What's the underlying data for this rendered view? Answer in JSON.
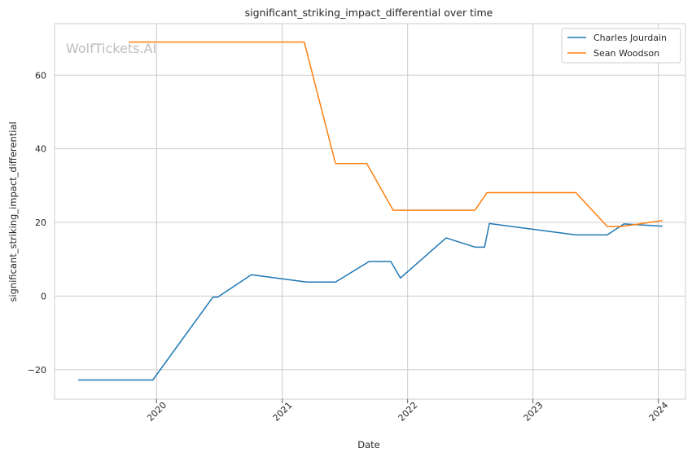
{
  "chart_data": {
    "type": "line",
    "title": "significant_striking_impact_differential over time",
    "xlabel": "Date",
    "ylabel": "significant_striking_impact_differential",
    "watermark": "WolfTickets.AI",
    "x_type": "date",
    "xlim": [
      "2019-03-10",
      "2024-03-20"
    ],
    "ylim": [
      -28,
      74
    ],
    "xticks": [
      {
        "date": "2020-01-01",
        "label": "2020"
      },
      {
        "date": "2021-01-01",
        "label": "2021"
      },
      {
        "date": "2022-01-01",
        "label": "2022"
      },
      {
        "date": "2023-01-01",
        "label": "2023"
      },
      {
        "date": "2024-01-01",
        "label": "2024"
      }
    ],
    "yticks": [
      -20,
      0,
      20,
      40,
      60
    ],
    "grid": true,
    "legend_position": "top-right",
    "series": [
      {
        "name": "Charles Jourdain",
        "color": "#1f77b4",
        "points": [
          {
            "x": "2019-05-18",
            "y": -22.8
          },
          {
            "x": "2019-12-21",
            "y": -22.8
          },
          {
            "x": "2020-06-13",
            "y": -0.3
          },
          {
            "x": "2020-06-27",
            "y": -0.3
          },
          {
            "x": "2020-10-03",
            "y": 5.8
          },
          {
            "x": "2021-03-13",
            "y": 3.8
          },
          {
            "x": "2021-06-05",
            "y": 3.8
          },
          {
            "x": "2021-09-11",
            "y": 9.4
          },
          {
            "x": "2021-11-13",
            "y": 9.4
          },
          {
            "x": "2021-12-11",
            "y": 4.9
          },
          {
            "x": "2022-04-23",
            "y": 15.8
          },
          {
            "x": "2022-07-16",
            "y": 13.3
          },
          {
            "x": "2022-08-13",
            "y": 13.3
          },
          {
            "x": "2022-08-27",
            "y": 19.7
          },
          {
            "x": "2023-05-06",
            "y": 16.6
          },
          {
            "x": "2023-08-05",
            "y": 16.6
          },
          {
            "x": "2023-09-23",
            "y": 19.6
          },
          {
            "x": "2024-01-13",
            "y": 19.0
          }
        ]
      },
      {
        "name": "Sean Woodson",
        "color": "#ff7f0e",
        "points": [
          {
            "x": "2019-10-12",
            "y": 69.0
          },
          {
            "x": "2021-03-06",
            "y": 69.0
          },
          {
            "x": "2021-06-05",
            "y": 36.0
          },
          {
            "x": "2021-09-04",
            "y": 36.0
          },
          {
            "x": "2021-11-20",
            "y": 23.3
          },
          {
            "x": "2022-07-16",
            "y": 23.3
          },
          {
            "x": "2022-08-20",
            "y": 28.1
          },
          {
            "x": "2023-05-06",
            "y": 28.1
          },
          {
            "x": "2023-08-05",
            "y": 18.9
          },
          {
            "x": "2023-09-16",
            "y": 18.9
          },
          {
            "x": "2024-01-13",
            "y": 20.5
          }
        ]
      }
    ]
  }
}
